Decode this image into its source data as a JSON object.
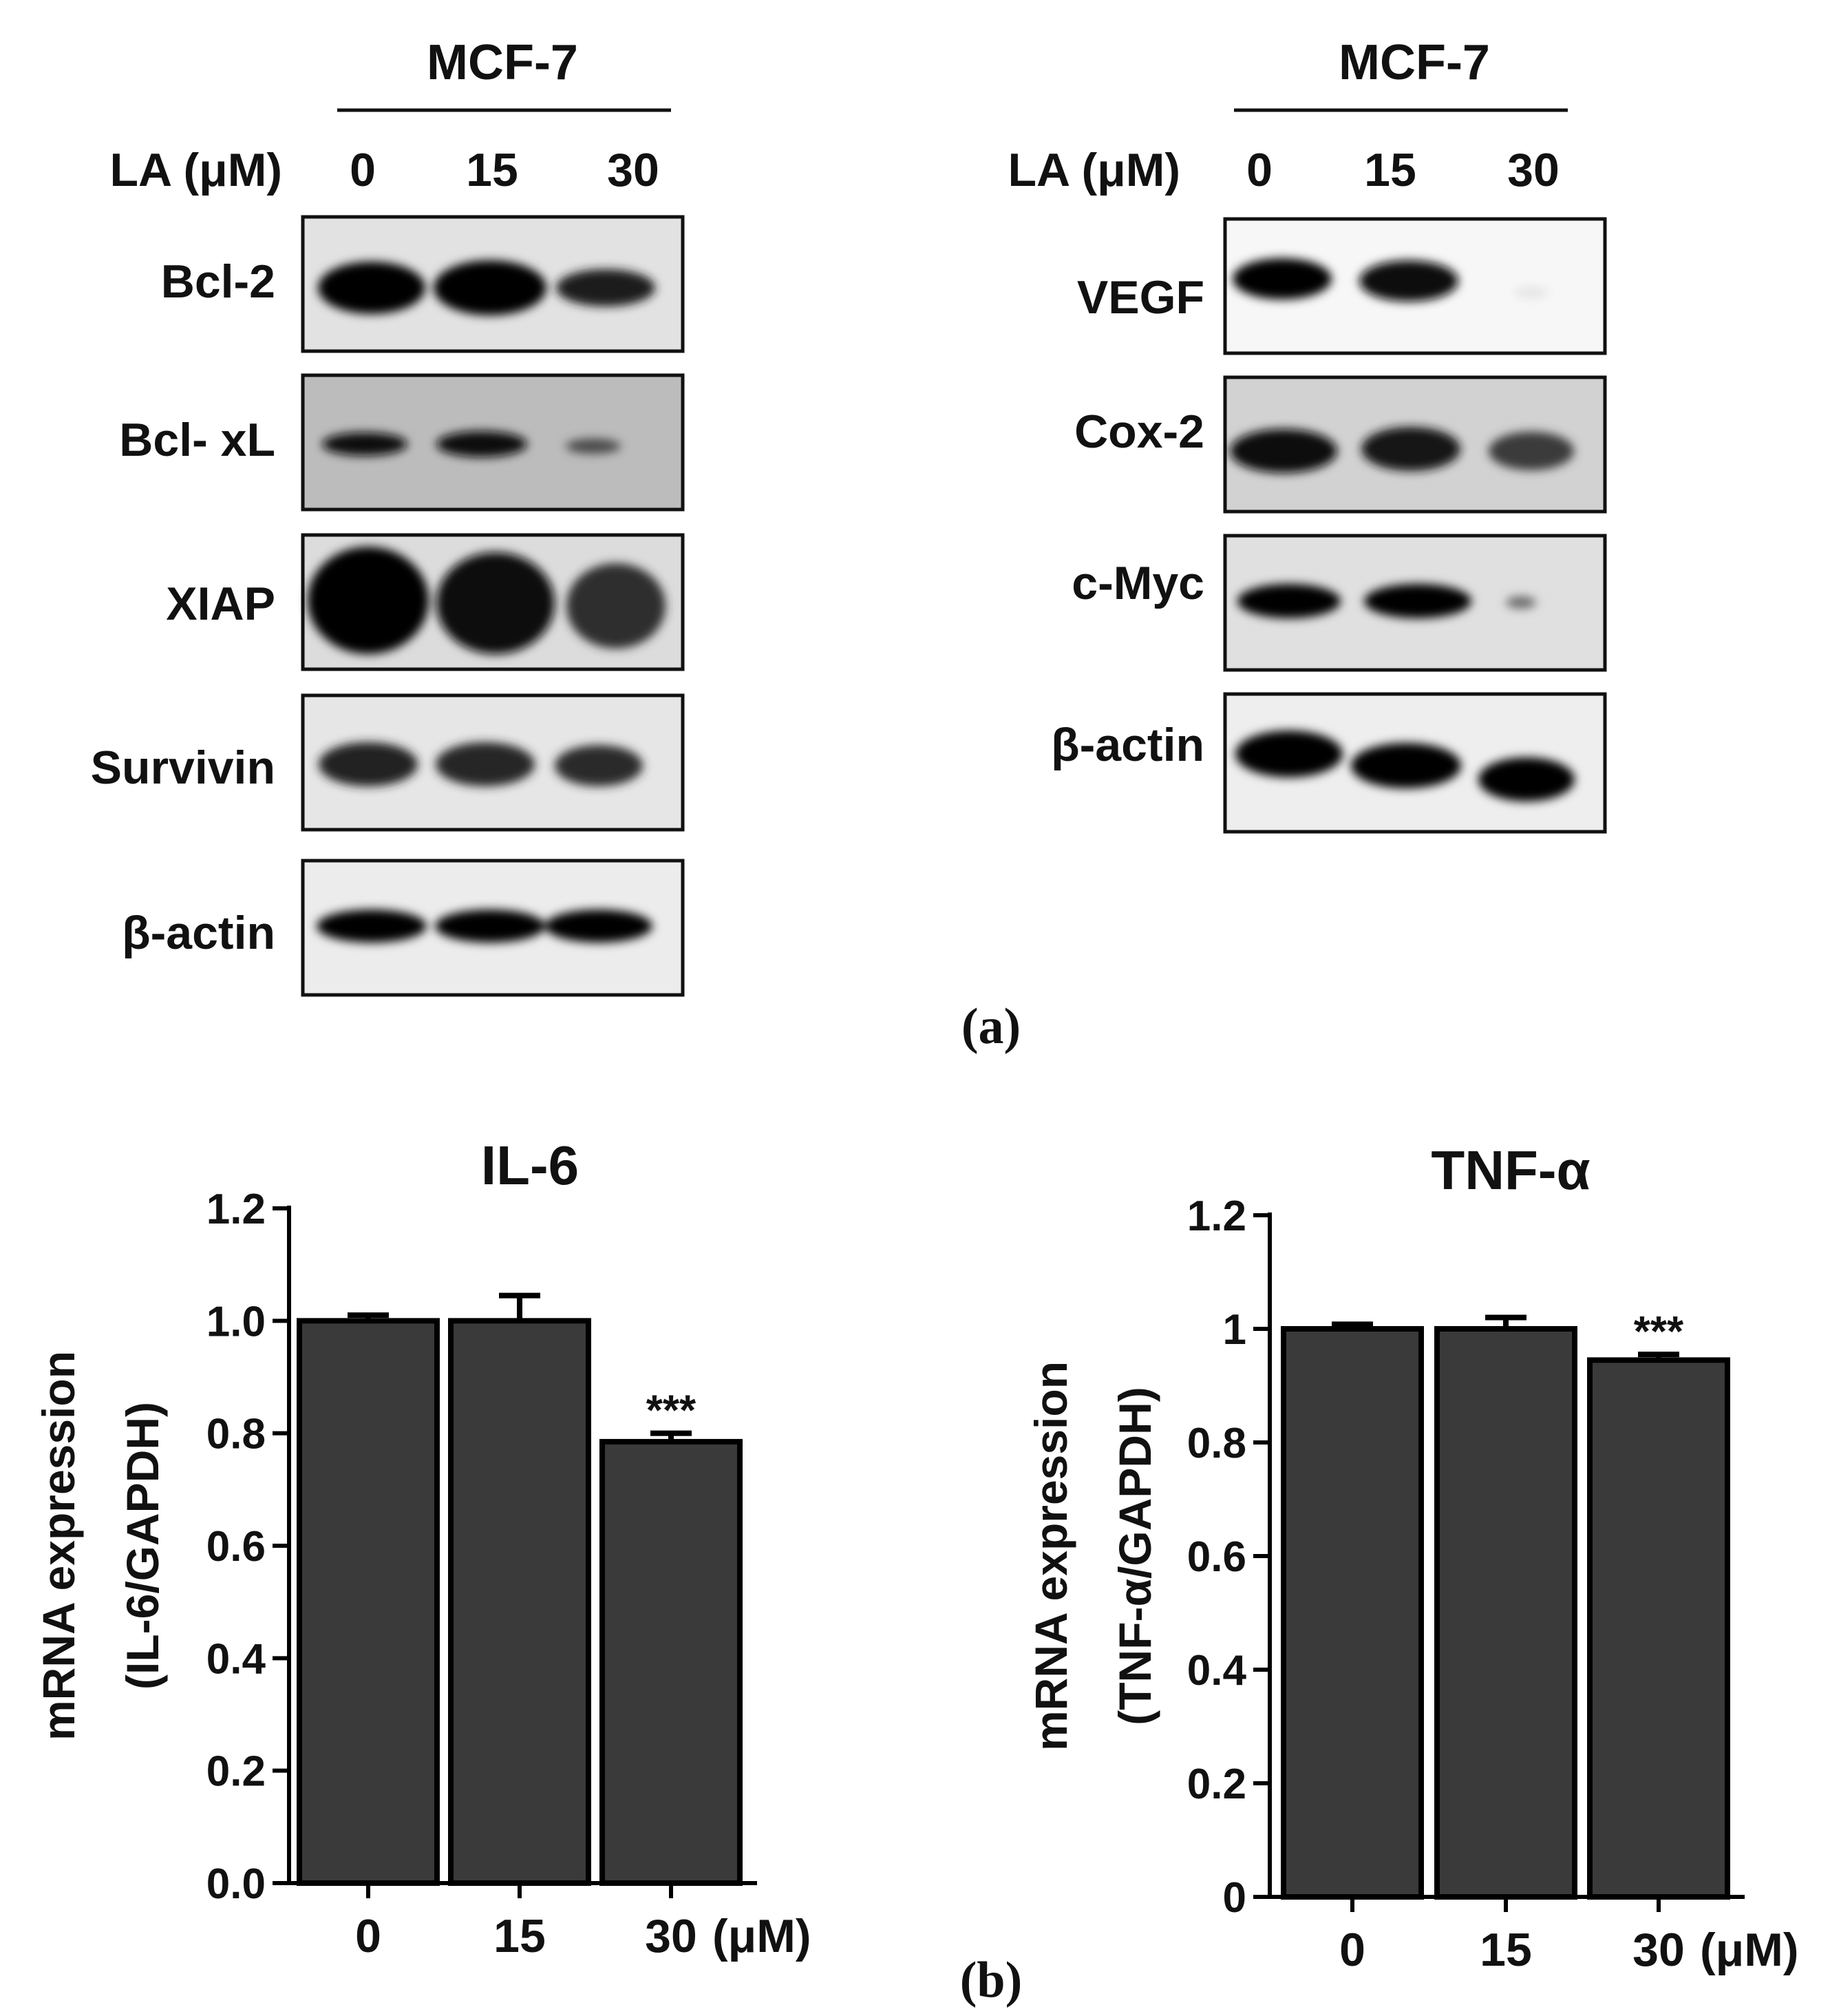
{
  "panel_a": {
    "caption": "(a)",
    "left_blot": {
      "cell_line": "MCF-7",
      "treatment_label": "LA (μM)",
      "doses": [
        "0",
        "15",
        "30"
      ],
      "bands": [
        {
          "label": "Bcl-2",
          "intensity": [
            1.0,
            1.0,
            0.7
          ]
        },
        {
          "label": "Bcl- xL",
          "intensity": [
            0.6,
            0.65,
            0.25
          ]
        },
        {
          "label": "XIAP",
          "intensity": [
            1.0,
            0.95,
            0.55
          ]
        },
        {
          "label": "Survivin",
          "intensity": [
            0.8,
            0.75,
            0.7
          ]
        },
        {
          "label": "β-actin",
          "intensity": [
            1.0,
            1.0,
            1.0
          ]
        }
      ]
    },
    "right_blot": {
      "cell_line": "MCF-7",
      "treatment_label": "LA (μM)",
      "doses": [
        "0",
        "15",
        "30"
      ],
      "bands": [
        {
          "label": "VEGF",
          "intensity": [
            0.9,
            0.85,
            0.02
          ]
        },
        {
          "label": "Cox-2",
          "intensity": [
            0.8,
            0.75,
            0.6
          ]
        },
        {
          "label": "c-Myc",
          "intensity": [
            1.0,
            1.0,
            0.15
          ]
        },
        {
          "label": "β-actin",
          "intensity": [
            1.0,
            1.0,
            1.0
          ]
        }
      ]
    }
  },
  "panel_b": {
    "caption": "(b)"
  },
  "chart_data": [
    {
      "type": "bar",
      "title": "IL-6",
      "ylabel_line1": "mRNA expression",
      "ylabel_line2": "(IL-6/GAPDH)",
      "categories": [
        "0",
        "15",
        "30"
      ],
      "x_unit": "(μM)",
      "values": [
        1.0,
        1.0,
        0.785
      ],
      "errors": [
        0.01,
        0.045,
        0.015
      ],
      "significance": [
        "",
        "",
        "***"
      ],
      "ylim": [
        0,
        1.2
      ],
      "yticks": [
        "0.0",
        "0.2",
        "0.4",
        "0.6",
        "0.8",
        "1.0",
        "1.2"
      ],
      "bar_color": "#3a3a3a"
    },
    {
      "type": "bar",
      "title": "TNF-α",
      "ylabel_line1": "mRNA expression",
      "ylabel_line2": "(TNF-α/GAPDH)",
      "categories": [
        "0",
        "15",
        "30"
      ],
      "x_unit": "(μM)",
      "values": [
        1.0,
        1.0,
        0.945
      ],
      "errors": [
        0.008,
        0.02,
        0.01
      ],
      "significance": [
        "",
        "",
        "***"
      ],
      "ylim": [
        0,
        1.2
      ],
      "yticks": [
        "0",
        "0.2",
        "0.4",
        "0.6",
        "0.8",
        "1",
        "1.2"
      ],
      "bar_color": "#3a3a3a"
    }
  ]
}
